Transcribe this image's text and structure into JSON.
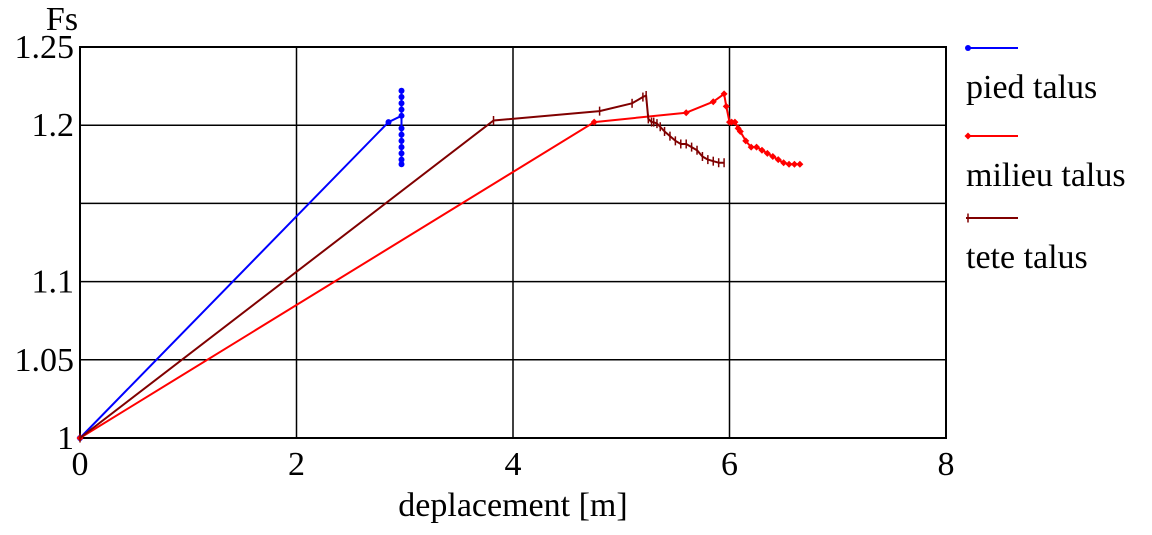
{
  "chart_data": {
    "type": "line",
    "title": "",
    "xlabel": "deplacement [m]",
    "ylabel": "Fs",
    "xlim": [
      0,
      8
    ],
    "ylim": [
      1.0,
      1.25
    ],
    "x_ticks": [
      0,
      2,
      4,
      6,
      8
    ],
    "x_tick_labels": [
      "0",
      "2",
      "4",
      "6",
      "8"
    ],
    "y_ticks": [
      1.0,
      1.05,
      1.1,
      1.15,
      1.2,
      1.25
    ],
    "y_tick_labels": [
      "1",
      "1.05",
      "1.1",
      "",
      "1.2",
      "1.25"
    ],
    "grid": true,
    "legend_position": "right",
    "series": [
      {
        "name": "pied talus",
        "color": "#0000ff",
        "marker": "dot",
        "x": [
          0,
          2.85,
          2.97,
          2.97,
          2.97,
          2.97,
          2.97,
          2.97,
          2.97,
          2.97,
          2.97,
          2.97,
          2.97,
          2.97
        ],
        "y": [
          1.0,
          1.202,
          1.206,
          1.21,
          1.214,
          1.218,
          1.222,
          1.198,
          1.194,
          1.19,
          1.186,
          1.182,
          1.178,
          1.175
        ]
      },
      {
        "name": "milieu talus",
        "color": "#ff0000",
        "marker": "diamond",
        "x": [
          0,
          4.75,
          5.6,
          5.85,
          5.95,
          5.97,
          6.0,
          6.02,
          6.05,
          6.08,
          6.1,
          6.15,
          6.2,
          6.25,
          6.3,
          6.35,
          6.4,
          6.45,
          6.5,
          6.55,
          6.6,
          6.65
        ],
        "y": [
          1.0,
          1.202,
          1.208,
          1.215,
          1.22,
          1.212,
          1.202,
          1.202,
          1.202,
          1.198,
          1.196,
          1.19,
          1.186,
          1.186,
          1.184,
          1.182,
          1.18,
          1.178,
          1.176,
          1.175,
          1.175,
          1.175
        ]
      },
      {
        "name": "tete talus",
        "color": "#800000",
        "marker": "tick",
        "x": [
          0,
          3.82,
          4.8,
          5.1,
          5.2,
          5.23,
          5.25,
          5.28,
          5.3,
          5.33,
          5.36,
          5.4,
          5.45,
          5.5,
          5.55,
          5.6,
          5.65,
          5.7,
          5.75,
          5.8,
          5.85,
          5.9,
          5.95
        ],
        "y": [
          1.0,
          1.203,
          1.209,
          1.214,
          1.218,
          1.219,
          1.204,
          1.202,
          1.202,
          1.201,
          1.199,
          1.196,
          1.193,
          1.19,
          1.188,
          1.188,
          1.186,
          1.184,
          1.18,
          1.178,
          1.177,
          1.176,
          1.176
        ]
      }
    ]
  }
}
